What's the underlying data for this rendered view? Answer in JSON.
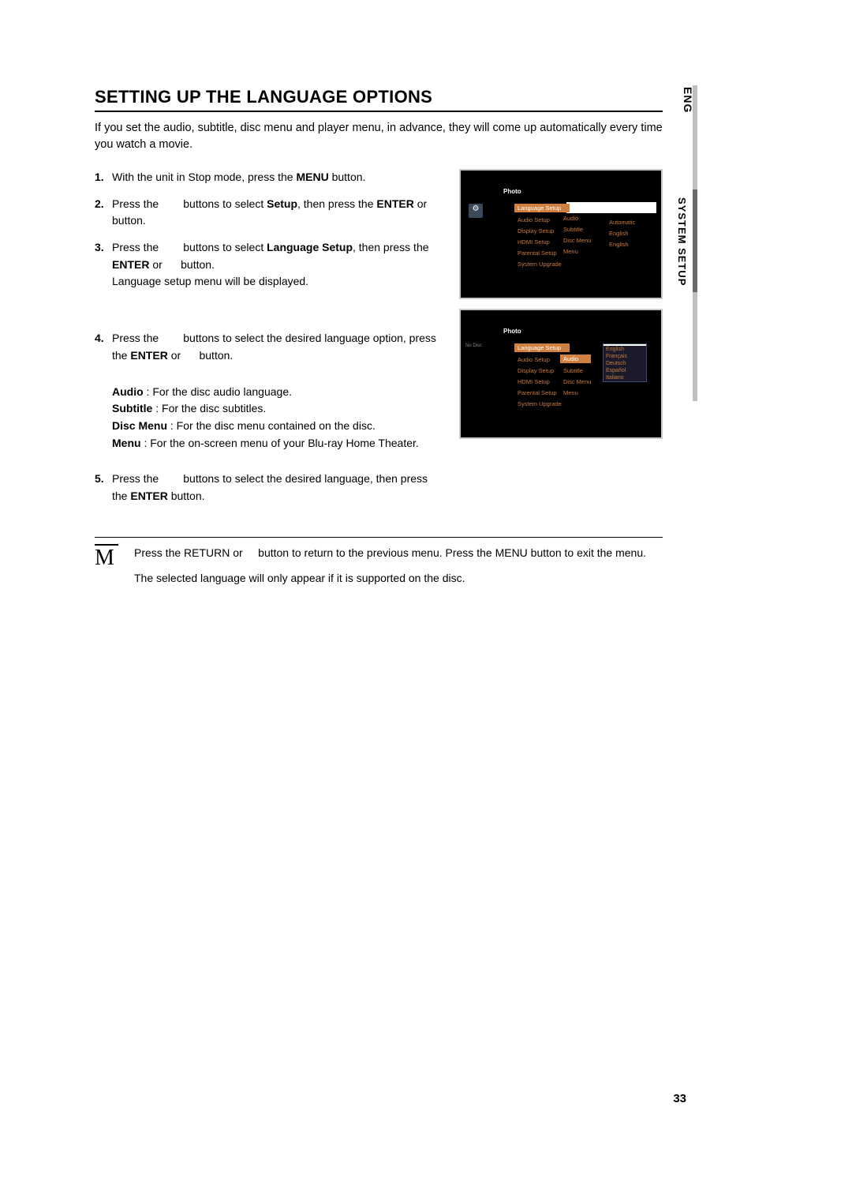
{
  "title": "SETTING UP THE LANGUAGE OPTIONS",
  "intro": "If you set the audio, subtitle, disc menu and player menu, in advance, they will come up automatically every time you watch a movie.",
  "steps": {
    "s1": {
      "text_a": "With the unit in Stop mode, press the ",
      "bold_a": "MENU",
      "text_b": " button."
    },
    "s2": {
      "text_a": "Press the        buttons to select ",
      "bold_a": "Setup",
      "text_b": ", then press the ",
      "bold_b": "ENTER",
      "text_c": " or      button."
    },
    "s3": {
      "text_a": "Press the        buttons to select ",
      "bold_a": "Language Setup",
      "text_b": ", then press the ",
      "bold_b": "ENTER",
      "text_c": " or      button.",
      "sub": "Language setup menu will be displayed."
    },
    "s4": {
      "text_a": "Press the        buttons to select the desired language option, press the ",
      "bold_a": "ENTER",
      "text_b": " or      button.",
      "bullets": {
        "b1_label": "Audio",
        "b1_text": " : For the disc audio language.",
        "b2_label": "Subtitle",
        "b2_text": " : For the disc subtitles.",
        "b3_label": "Disc Menu",
        "b3_text": " : For the disc menu contained on the disc.",
        "b4_label": "Menu",
        "b4_text": " : For the on-screen menu of your Blu-ray Home Theater."
      }
    },
    "s5": {
      "text_a": "Press the        buttons to select the desired language, then press the ",
      "bold_a": "ENTER",
      "text_b": " button."
    }
  },
  "note": {
    "line1_a": "Press the ",
    "line1_b": "RETURN",
    "line1_c": " or     button to return to the previous menu. Press the ",
    "line1_d": "MENU",
    "line1_e": " button to exit the menu.",
    "line2": "The selected language will only appear if it is supported on the disc."
  },
  "screens": {
    "photo": "Photo",
    "noDisc": "No Disc",
    "menu": {
      "m0": "Language Setup",
      "m1": "Audio Setup",
      "m2": "Display Setup",
      "m3": "HDMI Setup",
      "m4": "Parental Setup",
      "m5": "System Upgrade"
    },
    "col1": {
      "c0": "Audio",
      "c1": "Subtitle",
      "c2": "Disc Menu",
      "c3": "Menu"
    },
    "col2": {
      "v0": "",
      "v1": "Automatic",
      "v2": "English",
      "v3": "English"
    },
    "dropdown": {
      "d0": "",
      "d1": "English",
      "d2": "Français",
      "d3": "Deutsch",
      "d4": "Español",
      "d5": "Italiano"
    }
  },
  "tabs": {
    "lang": "ENG",
    "section": "SYSTEM SETUP"
  },
  "pageNum": "33"
}
